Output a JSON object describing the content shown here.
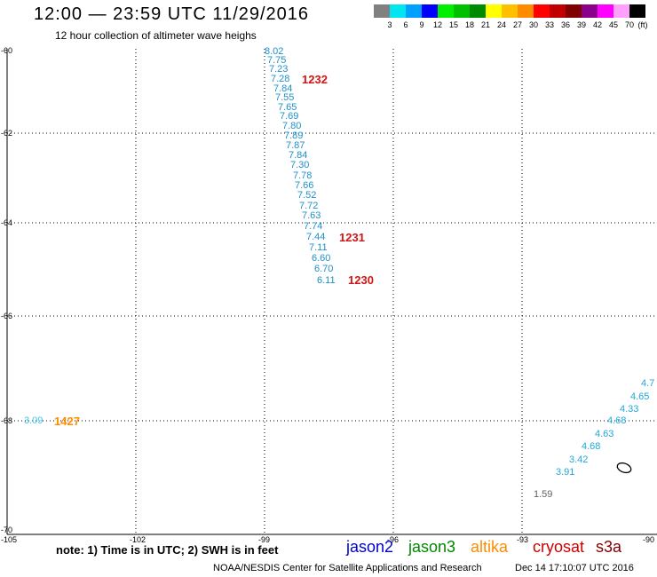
{
  "header": {
    "title": "12:00 — 23:59 UTC 11/29/2016",
    "subtitle": "12 hour collection of altimeter wave heighs"
  },
  "color_scale": {
    "unit": "(ft)",
    "swatches": [
      "#808080",
      "#00e5ee",
      "#00a0ff",
      "#0000ff",
      "#00ee00",
      "#00c000",
      "#008a00",
      "#ffff00",
      "#ffc000",
      "#ff8c00",
      "#ff0000",
      "#c00000",
      "#800000",
      "#8b008b",
      "#ff00ff",
      "#ffa0ff",
      "#000000"
    ],
    "ticks": [
      "3",
      "6",
      "9",
      "12",
      "15",
      "18",
      "21",
      "24",
      "27",
      "30",
      "33",
      "36",
      "39",
      "42",
      "45",
      "70"
    ]
  },
  "axes": {
    "lat_labels": [
      "-60",
      "-62",
      "-64",
      "-66",
      "-68",
      "-70"
    ],
    "lon_labels": [
      "-105",
      "-102",
      "-99",
      "-96",
      "-93",
      "-90"
    ]
  },
  "track_values": [
    "8.02",
    "7.75",
    "7.23",
    "7.28",
    "7.84",
    "7.55",
    "7.65",
    "7.69",
    "7.80",
    "7.89",
    "7.87",
    "7.84",
    "7.30",
    "7.78",
    "7.66",
    "7.52",
    "7.72",
    "7.63",
    "7.74",
    "7.44",
    "7.11",
    "6.60",
    "6.70",
    "6.11"
  ],
  "time_tags": {
    "t1": "1232",
    "t2": "1231",
    "t3": "1230",
    "t4": "1427"
  },
  "left_value": "3.09",
  "right_values": [
    "4.7",
    "4.65",
    "4.33",
    "4.68",
    "4.63",
    "4.68",
    "3.42",
    "3.91"
  ],
  "gray_value": "1.59",
  "footer": {
    "note": "note: 1) Time is in UTC; 2) SWH is in feet",
    "missions": [
      {
        "name": "jason2",
        "color": "#0000cc"
      },
      {
        "name": "jason3",
        "color": "#008800"
      },
      {
        "name": "altika",
        "color": "#ff8c00"
      },
      {
        "name": "cryosat",
        "color": "#cc0000"
      },
      {
        "name": "s3a",
        "color": "#800000"
      }
    ],
    "credit": "NOAA/NESDIS Center for Satellite Applications and Research",
    "timestamp": "Dec 14 17:10:07 UTC 2016"
  }
}
